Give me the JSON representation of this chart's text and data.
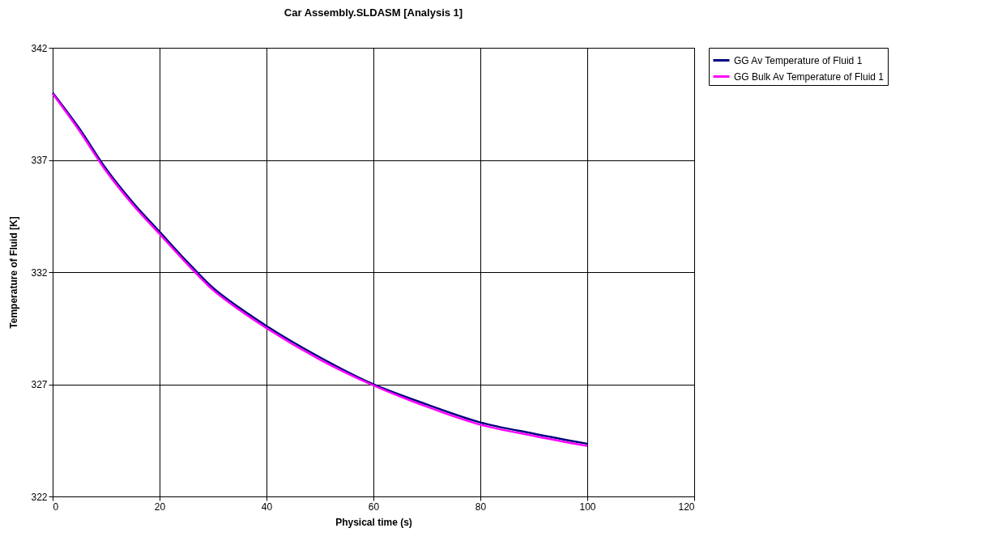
{
  "chart_data": {
    "type": "line",
    "title": "Car Assembly.SLDASM [Analysis 1]",
    "xlabel": "Physical time (s)",
    "ylabel": "Temperature of Fluid  [K]",
    "x": [
      0,
      5,
      10,
      15,
      20,
      25,
      30,
      35,
      40,
      50,
      60,
      70,
      80,
      90,
      100
    ],
    "series": [
      {
        "name": "GG Av Temperature of Fluid 1",
        "color": "#000080",
        "values": [
          340.0,
          338.4,
          336.6,
          335.1,
          333.8,
          332.5,
          331.3,
          330.4,
          329.6,
          328.2,
          327.0,
          326.1,
          325.3,
          324.8,
          324.35
        ]
      },
      {
        "name": "GG Bulk Av Temperature of Fluid 1",
        "color": "#ff00ff",
        "values": [
          339.95,
          338.3,
          336.5,
          335.0,
          333.7,
          332.4,
          331.2,
          330.3,
          329.5,
          328.1,
          326.95,
          326.0,
          325.2,
          324.7,
          324.25
        ]
      }
    ],
    "xlim": [
      0,
      120
    ],
    "xticks": [
      0,
      20,
      40,
      60,
      80,
      100,
      120
    ],
    "ylim": [
      322,
      342
    ],
    "yticks": [
      322,
      327,
      332,
      337,
      342
    ],
    "grid": true,
    "legend": "right",
    "marker": "none",
    "line_style": "solid"
  }
}
